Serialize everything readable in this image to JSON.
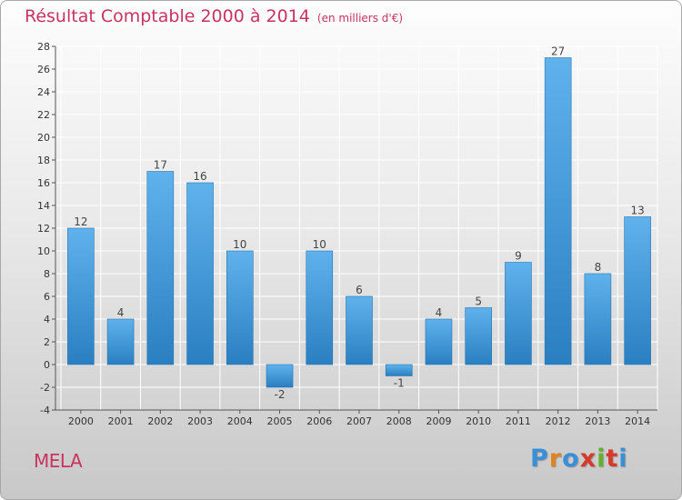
{
  "chart_data": {
    "type": "bar",
    "title": "Résultat Comptable 2000 à 2014",
    "subtitle": "(en milliers d'€)",
    "categories": [
      "2000",
      "2001",
      "2002",
      "2003",
      "2004",
      "2005",
      "2006",
      "2007",
      "2008",
      "2009",
      "2010",
      "2011",
      "2012",
      "2013",
      "2014"
    ],
    "values": [
      12,
      4,
      17,
      16,
      10,
      -2,
      10,
      6,
      -1,
      4,
      5,
      9,
      27,
      8,
      13
    ],
    "ylim": [
      -4,
      28
    ],
    "yticks": [
      -4,
      -2,
      0,
      2,
      4,
      6,
      8,
      10,
      12,
      14,
      16,
      18,
      20,
      22,
      24,
      26,
      28
    ],
    "xlabel": "",
    "ylabel": "",
    "grid": true,
    "bar_color_light": "#5fb2ec",
    "bar_color_dark": "#2a7fc1",
    "grid_color": "#ffffff"
  },
  "footer": {
    "commune": "MELA",
    "brand": "Proxiti"
  },
  "colors": {
    "title": "#c8335f",
    "brand_letters": [
      "#3a8fd6",
      "#e2831f",
      "#3a8fd6",
      "#d63a2d",
      "#62b12f",
      "#d63a2d",
      "#3a8fd6"
    ]
  }
}
